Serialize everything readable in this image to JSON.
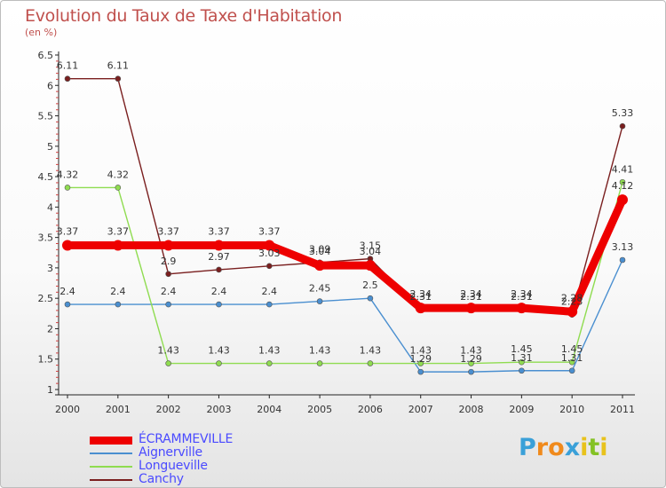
{
  "title": "Evolution du Taux de Taxe d'Habitation",
  "subtitle": "(en %)",
  "logo": {
    "letters": [
      "P",
      "r",
      "o",
      "x",
      "i",
      "t",
      "i"
    ],
    "colors": [
      "#3aa0d8",
      "#f08a1c",
      "#f08a1c",
      "#3aa0d8",
      "#e8c21c",
      "#84c225",
      "#e8c21c"
    ]
  },
  "chart_data": {
    "type": "line",
    "title": "Evolution du Taux de Taxe d'Habitation",
    "ylabel": "(en %)",
    "xlabel": "",
    "x": [
      "2000",
      "2001",
      "2002",
      "2003",
      "2004",
      "2005",
      "2006",
      "2007",
      "2008",
      "2009",
      "2010",
      "2011"
    ],
    "ylim": [
      1,
      6.5
    ],
    "yticks": [
      "1",
      "1.5",
      "2",
      "2.5",
      "3",
      "3.5",
      "4",
      "4.5",
      "5",
      "5.5",
      "6",
      "6.5"
    ],
    "grid": false,
    "legend_position": "bottom-left",
    "series": [
      {
        "name": "ÉCRAMMEVILLE",
        "color": "#ee0000",
        "values": [
          3.37,
          3.37,
          3.37,
          3.37,
          3.37,
          3.04,
          3.04,
          2.34,
          2.34,
          2.34,
          2.28,
          4.12
        ]
      },
      {
        "name": "Aignerville",
        "color": "#4a8fd0",
        "values": [
          2.4,
          2.4,
          2.4,
          2.4,
          2.4,
          2.45,
          2.5,
          1.29,
          1.29,
          1.31,
          1.31,
          3.13
        ]
      },
      {
        "name": "Longueville",
        "color": "#8fdc50",
        "values": [
          4.32,
          4.32,
          1.43,
          1.43,
          1.43,
          1.43,
          1.43,
          1.43,
          1.43,
          1.45,
          1.45,
          4.41
        ]
      },
      {
        "name": "Canchy",
        "color": "#7a1f1f",
        "values": [
          6.11,
          6.11,
          2.9,
          2.97,
          3.03,
          3.09,
          3.15,
          2.31,
          2.31,
          2.31,
          2.23,
          5.33
        ]
      }
    ],
    "data_labels": [
      {
        "series": 0,
        "labels": [
          "3.37",
          "3.37",
          "3.37",
          "3.37",
          "3.37",
          "3.04",
          "3.04",
          "2.34",
          "2.34",
          "2.34",
          "2.28",
          "4.12"
        ]
      },
      {
        "series": 1,
        "labels": [
          "2.4",
          "2.4",
          "2.4",
          "2.4",
          "2.4",
          "2.45",
          "2.5",
          "1.29",
          "1.29",
          "1.31",
          "1.31",
          "3.13"
        ]
      },
      {
        "series": 2,
        "labels": [
          "4.32",
          "4.32",
          "1.43",
          "1.43",
          "1.43",
          "1.43",
          "1.43",
          "1.43",
          "1.43",
          "1.45",
          "1.45",
          "4.41"
        ]
      },
      {
        "series": 3,
        "labels": [
          "6.11",
          "6.11",
          "2.9",
          "2.97",
          "3.03",
          "3.09",
          "3.15",
          "2.31",
          "2.31",
          "2.31",
          "2.23",
          "5.33"
        ]
      }
    ]
  }
}
